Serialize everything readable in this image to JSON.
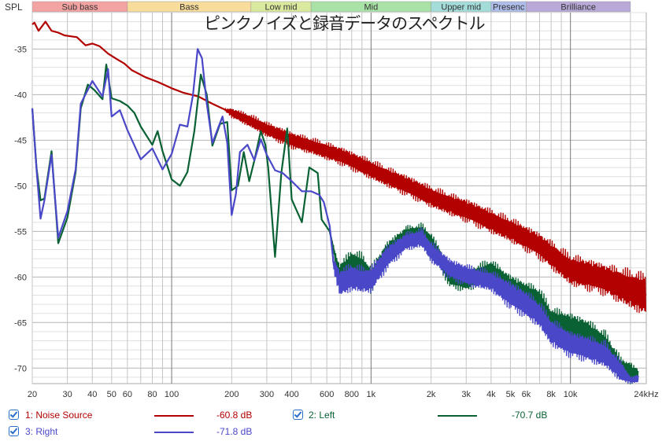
{
  "chart_data": {
    "type": "line",
    "title": "ピンクノイズと録音データのスペクトル",
    "ylabel": "SPL",
    "xscale": "log",
    "xlim": [
      20,
      24000
    ],
    "ylim": [
      -71.7,
      -31
    ],
    "grid": true,
    "yticks": [
      -35,
      -40,
      -45,
      -50,
      -55,
      -60,
      -65,
      -70
    ],
    "xticks": [
      {
        "f": 20,
        "label": "20"
      },
      {
        "f": 30,
        "label": "30"
      },
      {
        "f": 40,
        "label": "40"
      },
      {
        "f": 50,
        "label": "50"
      },
      {
        "f": 60,
        "label": "60"
      },
      {
        "f": 80,
        "label": "80"
      },
      {
        "f": 100,
        "label": "100"
      },
      {
        "f": 200,
        "label": "200"
      },
      {
        "f": 300,
        "label": "300"
      },
      {
        "f": 400,
        "label": "400"
      },
      {
        "f": 600,
        "label": "600"
      },
      {
        "f": 800,
        "label": "800"
      },
      {
        "f": 1000,
        "label": "1k"
      },
      {
        "f": 2000,
        "label": "2k"
      },
      {
        "f": 3000,
        "label": "3k"
      },
      {
        "f": 4000,
        "label": "4k"
      },
      {
        "f": 5000,
        "label": "5k"
      },
      {
        "f": 6000,
        "label": "6k"
      },
      {
        "f": 8000,
        "label": "8k"
      },
      {
        "f": 10000,
        "label": "10k"
      },
      {
        "f": 24000,
        "label": "24kHz"
      }
    ],
    "bands": [
      {
        "name": "Sub bass",
        "from": 20,
        "to": 60,
        "color": "#f4a3a3"
      },
      {
        "name": "Bass",
        "from": 60,
        "to": 250,
        "color": "#f7dc9b"
      },
      {
        "name": "Low mid",
        "from": 250,
        "to": 500,
        "color": "#d9ea9e"
      },
      {
        "name": "Mid",
        "from": 500,
        "to": 2000,
        "color": "#a9e2a6"
      },
      {
        "name": "Upper mid",
        "from": 2000,
        "to": 4000,
        "color": "#a3dcd9"
      },
      {
        "name": "Presenc",
        "from": 4000,
        "to": 6000,
        "color": "#aebde9"
      },
      {
        "name": "Brilliance",
        "from": 6000,
        "to": 20000,
        "color": "#b9a9d9"
      }
    ],
    "series": [
      {
        "name": "1: Noise Source",
        "color": "#b30000",
        "level": "-60.8 dB",
        "points": [
          [
            20,
            -32.3,
            0
          ],
          [
            20.5,
            -32.1,
            0
          ],
          [
            21.5,
            -33,
            0
          ],
          [
            23.3,
            -32,
            0
          ],
          [
            25,
            -33,
            0
          ],
          [
            27,
            -33.2,
            0
          ],
          [
            29,
            -33.5,
            0
          ],
          [
            33.5,
            -33.7,
            0
          ],
          [
            37,
            -34.6,
            0
          ],
          [
            40,
            -34.4,
            0
          ],
          [
            43.6,
            -34.7,
            0
          ],
          [
            48,
            -35.5,
            0
          ],
          [
            53,
            -36.1,
            0
          ],
          [
            58,
            -36.6,
            0
          ],
          [
            63,
            -37.3,
            0
          ],
          [
            74,
            -38.1,
            0
          ],
          [
            85,
            -38.6,
            0
          ],
          [
            100,
            -39.3,
            0
          ],
          [
            115,
            -39.8,
            0
          ],
          [
            136,
            -40.2,
            0
          ],
          [
            160,
            -41,
            0
          ],
          [
            183,
            -41.6,
            0
          ],
          [
            200,
            -42,
            0.6
          ],
          [
            250,
            -42.9,
            0.8
          ],
          [
            300,
            -43.8,
            0.9
          ],
          [
            400,
            -45,
            1
          ],
          [
            500,
            -45.6,
            1
          ],
          [
            700,
            -46.7,
            1.1
          ],
          [
            1000,
            -48.2,
            1.2
          ],
          [
            2000,
            -51.2,
            1.3
          ],
          [
            3000,
            -52.7,
            1.4
          ],
          [
            5000,
            -54.8,
            1.5
          ],
          [
            7000,
            -56.6,
            1.6
          ],
          [
            10000,
            -59.2,
            1.9
          ],
          [
            15000,
            -60.3,
            1.9
          ],
          [
            24000,
            -62,
            2.6
          ]
        ]
      },
      {
        "name": "2: Left",
        "color": "#0a6234",
        "level": "-70.7 dB",
        "points": [
          [
            20,
            -41.5,
            0
          ],
          [
            21,
            -48,
            0
          ],
          [
            22,
            -51.6,
            0
          ],
          [
            23,
            -51.4,
            0
          ],
          [
            25,
            -46.2,
            0
          ],
          [
            27,
            -56.3,
            0
          ],
          [
            30,
            -53.5,
            0
          ],
          [
            33,
            -48.5,
            0
          ],
          [
            35,
            -41.5,
            0
          ],
          [
            38,
            -38.9,
            0
          ],
          [
            41,
            -39.5,
            0
          ],
          [
            45,
            -40.5,
            0
          ],
          [
            47,
            -36.7,
            0
          ],
          [
            50,
            -40.4,
            0
          ],
          [
            55,
            -40.7,
            0
          ],
          [
            60,
            -41.2,
            0
          ],
          [
            65,
            -42,
            0
          ],
          [
            70,
            -43.5,
            0
          ],
          [
            80,
            -45.5,
            0
          ],
          [
            85,
            -44,
            0
          ],
          [
            90,
            -46.2,
            0
          ],
          [
            100,
            -49.3,
            0
          ],
          [
            110,
            -50,
            0
          ],
          [
            120,
            -48.5,
            0
          ],
          [
            130,
            -44,
            0
          ],
          [
            140,
            -37.8,
            0
          ],
          [
            150,
            -40,
            0
          ],
          [
            160,
            -45.6,
            0
          ],
          [
            175,
            -43.2,
            0
          ],
          [
            190,
            -43,
            0
          ],
          [
            200,
            -50.5,
            0
          ],
          [
            215,
            -50,
            0
          ],
          [
            230,
            -46.3,
            0
          ],
          [
            245,
            -49.5,
            0
          ],
          [
            260,
            -47.2,
            0
          ],
          [
            280,
            -44,
            0
          ],
          [
            295,
            -45.5,
            0
          ],
          [
            305,
            -48,
            0
          ],
          [
            330,
            -57.8,
            0
          ],
          [
            355,
            -48.6,
            0
          ],
          [
            380,
            -43.7,
            0
          ],
          [
            400,
            -51.5,
            0
          ],
          [
            450,
            -54,
            0
          ],
          [
            490,
            -48,
            0
          ],
          [
            540,
            -48.6,
            0
          ],
          [
            565,
            -53.7,
            0
          ],
          [
            620,
            -55,
            0
          ],
          [
            680,
            -59,
            1
          ],
          [
            700,
            -60,
            1.8
          ],
          [
            800,
            -58.6,
            1.8
          ],
          [
            900,
            -59,
            1.8
          ],
          [
            1000,
            -60.3,
            1.7
          ],
          [
            1200,
            -57.5,
            1.5
          ],
          [
            1500,
            -55.5,
            1.2
          ],
          [
            1800,
            -55.2,
            1.2
          ],
          [
            2000,
            -56.3,
            1.3
          ],
          [
            2500,
            -60,
            1.4
          ],
          [
            3000,
            -60.3,
            1.4
          ],
          [
            4000,
            -59.4,
            1.5
          ],
          [
            5000,
            -61.2,
            1.6
          ],
          [
            6000,
            -62,
            1.6
          ],
          [
            7000,
            -62.6,
            1.6
          ],
          [
            8000,
            -64.9,
            1.8
          ],
          [
            10000,
            -65.6,
            1.8
          ],
          [
            12000,
            -66.2,
            1.8
          ],
          [
            15000,
            -67.6,
            1.8
          ],
          [
            18000,
            -70.2,
            1.5
          ],
          [
            20000,
            -70.5,
            1.3
          ],
          [
            22000,
            -71,
            1
          ]
        ]
      },
      {
        "name": "3: Right",
        "color": "#4a48c8",
        "level": "-71.8 dB",
        "points": [
          [
            20,
            -41.5,
            0
          ],
          [
            21,
            -48.2,
            0
          ],
          [
            22,
            -53.6,
            0
          ],
          [
            23,
            -51.6,
            0
          ],
          [
            25,
            -46.6,
            0
          ],
          [
            27,
            -55.7,
            0
          ],
          [
            30,
            -52.8,
            0
          ],
          [
            33,
            -48.2,
            0
          ],
          [
            35,
            -41,
            0
          ],
          [
            40,
            -38.5,
            0
          ],
          [
            45,
            -40.2,
            0
          ],
          [
            48,
            -37.2,
            0
          ],
          [
            50,
            -42.4,
            0
          ],
          [
            55,
            -41.7,
            0
          ],
          [
            60,
            -43.9,
            0
          ],
          [
            70,
            -47.1,
            0
          ],
          [
            80,
            -45.9,
            0
          ],
          [
            90,
            -48.2,
            0
          ],
          [
            100,
            -46.5,
            0
          ],
          [
            110,
            -43.3,
            0
          ],
          [
            120,
            -43.5,
            0
          ],
          [
            128,
            -40,
            0
          ],
          [
            135,
            -35,
            0
          ],
          [
            142,
            -36,
            0
          ],
          [
            150,
            -41,
            0
          ],
          [
            160,
            -45.3,
            0
          ],
          [
            180,
            -42.4,
            0
          ],
          [
            190,
            -45.3,
            0
          ],
          [
            200,
            -53.2,
            0
          ],
          [
            210,
            -50.9,
            0
          ],
          [
            220,
            -46.3,
            0
          ],
          [
            240,
            -45.5,
            0
          ],
          [
            260,
            -47.2,
            0
          ],
          [
            280,
            -44.9,
            0
          ],
          [
            300,
            -46.6,
            0
          ],
          [
            330,
            -48.3,
            0
          ],
          [
            360,
            -48.6,
            0
          ],
          [
            400,
            -49.5,
            0
          ],
          [
            450,
            -50.6,
            0
          ],
          [
            500,
            -50.6,
            0
          ],
          [
            550,
            -51,
            0
          ],
          [
            580,
            -51.8,
            0
          ],
          [
            620,
            -54.4,
            0
          ],
          [
            650,
            -58.7,
            0.8
          ],
          [
            700,
            -60.7,
            1.7
          ],
          [
            800,
            -60,
            1.7
          ],
          [
            900,
            -60.3,
            1.6
          ],
          [
            1000,
            -60.3,
            1.6
          ],
          [
            1200,
            -57.9,
            1.5
          ],
          [
            1500,
            -56.1,
            1.1
          ],
          [
            1800,
            -55.7,
            1.2
          ],
          [
            2000,
            -57.2,
            1.3
          ],
          [
            2500,
            -59.2,
            1.3
          ],
          [
            3000,
            -59.8,
            1.3
          ],
          [
            4000,
            -60.4,
            1.3
          ],
          [
            5000,
            -62,
            1.7
          ],
          [
            6000,
            -63,
            1.7
          ],
          [
            7000,
            -64.1,
            1.6
          ],
          [
            8000,
            -66,
            1.7
          ],
          [
            10000,
            -67.4,
            1.6
          ],
          [
            12000,
            -67.8,
            1.6
          ],
          [
            15000,
            -68.5,
            1.6
          ],
          [
            18000,
            -70.4,
            1.3
          ],
          [
            20000,
            -71.3,
            0.4
          ],
          [
            22000,
            -71.2,
            0.6
          ]
        ]
      }
    ]
  }
}
